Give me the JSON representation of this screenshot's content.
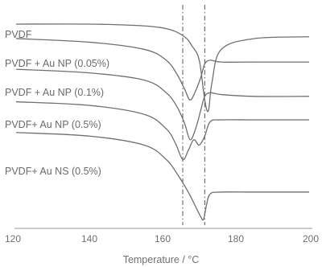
{
  "chart_data": {
    "type": "line",
    "title": "",
    "xlabel": "Temperature / °C",
    "ylabel": "",
    "xlim": [
      120,
      200
    ],
    "xticks": [
      120,
      140,
      160,
      180,
      200
    ],
    "grid": false,
    "markers": [
      165.5,
      171.5
    ],
    "series": [
      {
        "name": "PVDF",
        "x": [
          120,
          140,
          155,
          162,
          166,
          168,
          170,
          171.5,
          172.5,
          173.5,
          176,
          185,
          200
        ],
        "y": [
          1.0,
          1.0,
          0.99,
          0.97,
          0.93,
          0.88,
          0.8,
          0.58,
          0.52,
          0.68,
          0.86,
          0.92,
          0.93
        ]
      },
      {
        "name": "PVDF + Au NP (0.05%)",
        "x": [
          120,
          140,
          155,
          161,
          164,
          166,
          167.5,
          169,
          170.5,
          171.5,
          173,
          176,
          185,
          200
        ],
        "y": [
          0.92,
          0.9,
          0.86,
          0.8,
          0.72,
          0.64,
          0.58,
          0.63,
          0.71,
          0.78,
          0.8,
          0.79,
          0.79,
          0.79
        ]
      },
      {
        "name": "PVDF + Au NP (0.1%)",
        "x": [
          120,
          140,
          155,
          161,
          164,
          166,
          167.5,
          169,
          170.5,
          171.5,
          173,
          176,
          185,
          200
        ],
        "y": [
          0.75,
          0.73,
          0.69,
          0.62,
          0.54,
          0.45,
          0.36,
          0.42,
          0.53,
          0.6,
          0.62,
          0.61,
          0.6,
          0.6
        ]
      },
      {
        "name": "PVDF+ Au NP (0.5%)",
        "x": [
          120,
          140,
          155,
          161,
          163.5,
          165.5,
          167,
          168.5,
          170,
          171.5,
          173,
          176,
          185,
          200
        ],
        "y": [
          0.57,
          0.55,
          0.5,
          0.42,
          0.34,
          0.25,
          0.3,
          0.36,
          0.33,
          0.38,
          0.46,
          0.47,
          0.47,
          0.47
        ]
      },
      {
        "name": "PVDF+ Au NS (0.5%)",
        "x": [
          120,
          140,
          155,
          161,
          164,
          167,
          169,
          170.5,
          171.2,
          172,
          173,
          176,
          185,
          200
        ],
        "y": [
          0.4,
          0.38,
          0.33,
          0.25,
          0.17,
          0.07,
          -0.01,
          -0.07,
          -0.08,
          0.0,
          0.06,
          0.07,
          0.07,
          0.07
        ]
      }
    ]
  }
}
